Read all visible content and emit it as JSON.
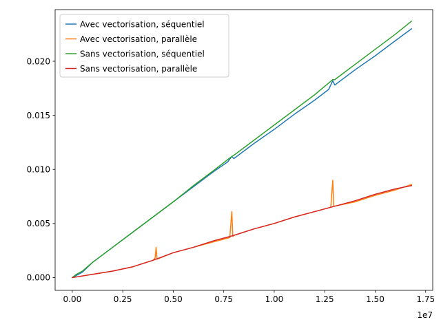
{
  "chart_data": {
    "type": "line",
    "title": "",
    "xlabel": "",
    "ylabel": "",
    "x_offset_label": "1e7",
    "xlim": [
      -0.085,
      1.785
    ],
    "ylim": [
      -0.00118,
      0.02477
    ],
    "x_ticks": [
      0.0,
      0.25,
      0.5,
      0.75,
      1.0,
      1.25,
      1.5,
      1.75
    ],
    "x_tick_labels": [
      "0.00",
      "0.25",
      "0.50",
      "0.75",
      "1.00",
      "1.25",
      "1.50",
      "1.75"
    ],
    "y_ticks": [
      0.0,
      0.005,
      0.01,
      0.015,
      0.02
    ],
    "y_tick_labels": [
      "0.000",
      "0.005",
      "0.010",
      "0.015",
      "0.020"
    ],
    "grid": false,
    "legend_position": "top-left",
    "series": [
      {
        "name": "Avec vectorisation, séquentiel",
        "color": "#1f77b4",
        "x": [
          0.0,
          0.02,
          0.05,
          0.1,
          0.2,
          0.3,
          0.4,
          0.5,
          0.6,
          0.7,
          0.77,
          0.79,
          0.8,
          0.85,
          0.9,
          1.0,
          1.1,
          1.2,
          1.27,
          1.29,
          1.3,
          1.35,
          1.4,
          1.5,
          1.6,
          1.68
        ],
        "y": [
          0.0,
          0.0002,
          0.0005,
          0.0014,
          0.0028,
          0.0042,
          0.0056,
          0.007,
          0.0084,
          0.0098,
          0.0107,
          0.0112,
          0.011,
          0.0117,
          0.0124,
          0.0137,
          0.0151,
          0.0164,
          0.0174,
          0.0182,
          0.0178,
          0.0185,
          0.0192,
          0.0205,
          0.0219,
          0.023
        ]
      },
      {
        "name": "Avec vectorisation, parallèle",
        "color": "#ff7f0e",
        "x": [
          0.0,
          0.1,
          0.2,
          0.3,
          0.4,
          0.41,
          0.415,
          0.42,
          0.5,
          0.6,
          0.7,
          0.78,
          0.79,
          0.795,
          0.8,
          0.9,
          1.0,
          1.1,
          1.2,
          1.28,
          1.29,
          1.295,
          1.3,
          1.4,
          1.5,
          1.6,
          1.68
        ],
        "y": [
          0.0,
          0.0003,
          0.0006,
          0.001,
          0.0016,
          0.0018,
          0.0028,
          0.0017,
          0.0023,
          0.0028,
          0.0033,
          0.0037,
          0.0061,
          0.0038,
          0.0039,
          0.0045,
          0.005,
          0.0056,
          0.0061,
          0.0065,
          0.009,
          0.0066,
          0.0066,
          0.007,
          0.0076,
          0.0081,
          0.0086
        ]
      },
      {
        "name": "Sans vectorisation, séquentiel",
        "color": "#2ca02c",
        "x": [
          0.0,
          0.02,
          0.05,
          0.1,
          0.2,
          0.3,
          0.4,
          0.5,
          0.6,
          0.7,
          0.79,
          0.8,
          0.9,
          1.0,
          1.1,
          1.2,
          1.29,
          1.3,
          1.4,
          1.5,
          1.6,
          1.68
        ],
        "y": [
          0.0,
          0.0003,
          0.0006,
          0.0014,
          0.0028,
          0.0042,
          0.0056,
          0.007,
          0.0085,
          0.0099,
          0.0112,
          0.0113,
          0.0127,
          0.0141,
          0.0155,
          0.0169,
          0.0183,
          0.0183,
          0.0197,
          0.0211,
          0.0225,
          0.0237
        ]
      },
      {
        "name": "Sans vectorisation, parallèle",
        "color": "#d62728",
        "x": [
          0.0,
          0.1,
          0.2,
          0.3,
          0.4,
          0.5,
          0.6,
          0.7,
          0.8,
          0.9,
          1.0,
          1.1,
          1.2,
          1.3,
          1.4,
          1.5,
          1.6,
          1.68
        ],
        "y": [
          0.0,
          0.0003,
          0.0006,
          0.001,
          0.0016,
          0.0023,
          0.0028,
          0.0034,
          0.0039,
          0.0045,
          0.005,
          0.0056,
          0.0061,
          0.0066,
          0.0071,
          0.0077,
          0.0082,
          0.0085
        ]
      }
    ]
  }
}
